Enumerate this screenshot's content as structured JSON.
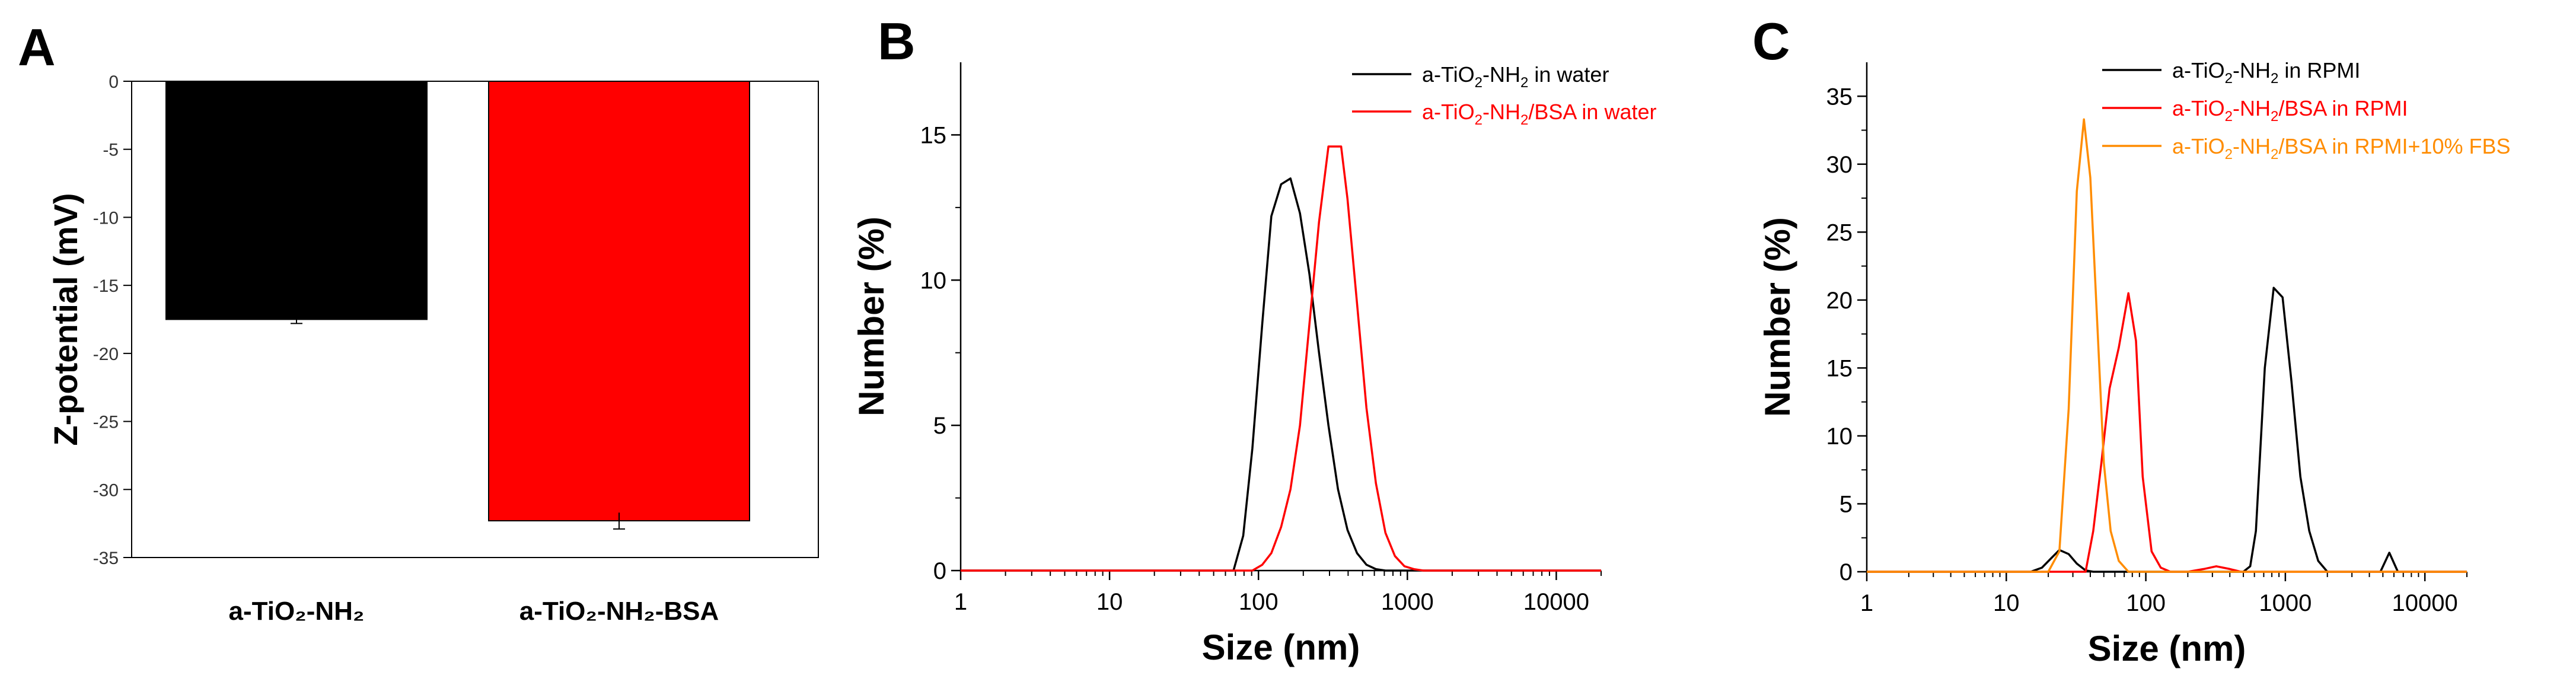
{
  "colors": {
    "black": "#000000",
    "red": "#ff0000",
    "orange": "#ff8c00"
  },
  "chart_data": [
    {
      "panel_letter": "A",
      "type": "bar",
      "title": "",
      "xlabel": "",
      "ylabel": "Z-potential (mV)",
      "ylim": [
        -35,
        0
      ],
      "yticks": [
        0,
        -5,
        -10,
        -15,
        -20,
        -25,
        -30,
        -35
      ],
      "ytick_labels": [
        "0",
        "-5",
        "-10",
        "-15",
        "-20",
        "-25",
        "-30",
        "-35"
      ],
      "categories": [
        "a-TiO₂-NH₂",
        "a-TiO₂-NH₂-BSA"
      ],
      "values": [
        -17.5,
        -32.3
      ],
      "errors": [
        0.3,
        0.6
      ],
      "bar_colors": [
        "#000000",
        "#ff0000"
      ]
    },
    {
      "panel_letter": "B",
      "type": "line",
      "xscale": "log",
      "xlabel": "Size (nm)",
      "ylabel": "Number (%)",
      "xlim": [
        1,
        20000
      ],
      "ylim": [
        0,
        17.5
      ],
      "xticks": [
        1,
        10,
        100,
        1000,
        10000
      ],
      "xtick_labels": [
        "1",
        "10",
        "100",
        "1000",
        "10000"
      ],
      "yticks": [
        0,
        5,
        10,
        15
      ],
      "ytick_labels": [
        "0",
        "5",
        "10",
        "15"
      ],
      "legend_position": "top-right",
      "series": [
        {
          "name_pre": "a-TiO",
          "name_sub1": "2",
          "name_mid": "-NH",
          "name_sub2": "2",
          "name_post": " in water",
          "color": "#000000",
          "x": [
            1,
            68,
            79,
            91,
            106,
            122,
            142,
            164,
            190,
            220,
            255,
            295,
            342,
            396,
            459,
            531,
            615,
            712,
            825,
            955,
            1106,
            20000
          ],
          "y": [
            0,
            0,
            1.2,
            4.2,
            8.5,
            12.2,
            13.3,
            13.5,
            12.3,
            10.2,
            7.5,
            5.0,
            2.8,
            1.4,
            0.6,
            0.2,
            0.05,
            0,
            0,
            0,
            0,
            0
          ]
        },
        {
          "name_pre": "a-TiO",
          "name_sub1": "2",
          "name_mid": "-NH",
          "name_sub2": "2",
          "name_post": "/BSA in water",
          "color": "#ff0000",
          "x": [
            1,
            91,
            106,
            122,
            142,
            164,
            190,
            220,
            255,
            295,
            310,
            342,
            359,
            396,
            459,
            531,
            615,
            712,
            825,
            955,
            1106,
            1281,
            1484,
            20000
          ],
          "y": [
            0,
            0,
            0.2,
            0.6,
            1.5,
            2.8,
            5.0,
            8.5,
            12.0,
            14.6,
            14.6,
            14.6,
            14.6,
            12.8,
            9.2,
            5.6,
            3.0,
            1.3,
            0.5,
            0.15,
            0.05,
            0,
            0,
            0
          ]
        }
      ]
    },
    {
      "panel_letter": "C",
      "type": "line",
      "xscale": "log",
      "xlabel": "Size (nm)",
      "ylabel": "Number (%)",
      "xlim": [
        1,
        20000
      ],
      "ylim": [
        0,
        37.5
      ],
      "xticks": [
        1,
        10,
        100,
        1000,
        10000
      ],
      "xtick_labels": [
        "1",
        "10",
        "100",
        "1000",
        "10000"
      ],
      "yticks": [
        0,
        5,
        10,
        15,
        20,
        25,
        30,
        35
      ],
      "ytick_labels": [
        "0",
        "5",
        "10",
        "15",
        "20",
        "25",
        "30",
        "35"
      ],
      "legend_position": "top-right",
      "series": [
        {
          "name_pre": "a-TiO",
          "name_sub1": "2",
          "name_mid": "-NH",
          "name_sub2": "2",
          "name_post": " in RPMI",
          "color": "#000000",
          "x": [
            1,
            15,
            18,
            21,
            24,
            28,
            32,
            37,
            42,
            500,
            560,
            615,
            712,
            825,
            955,
            1106,
            1281,
            1484,
            1720,
            2000,
            4000,
            4800,
            5560,
            6400,
            7500,
            20000
          ],
          "y": [
            0,
            0,
            0.3,
            1.0,
            1.6,
            1.3,
            0.6,
            0.1,
            0,
            0,
            0.4,
            3.0,
            15.0,
            20.9,
            20.2,
            14.0,
            7.0,
            3.0,
            0.8,
            0,
            0,
            0,
            1.4,
            0,
            0,
            0
          ]
        },
        {
          "name_pre": "a-TiO",
          "name_sub1": "2",
          "name_mid": "-NH",
          "name_sub2": "2",
          "name_post": "/BSA in RPMI",
          "color": "#ff0000",
          "x": [
            1,
            37,
            42,
            48,
            55,
            64,
            75,
            85,
            95,
            110,
            128,
            150,
            200,
            260,
            320,
            400,
            480,
            20000
          ],
          "y": [
            0,
            0,
            3.0,
            8.0,
            13.5,
            16.5,
            20.5,
            17.0,
            7.0,
            1.5,
            0.3,
            0,
            0,
            0.2,
            0.4,
            0.2,
            0,
            0
          ]
        },
        {
          "name_pre": "a-TiO",
          "name_sub1": "2",
          "name_mid": "-NH",
          "name_sub2": "2",
          "name_post": "/BSA in RPMI+10% FBS",
          "color": "#ff8c00",
          "x": [
            1,
            20,
            24,
            28,
            32,
            36,
            40,
            45,
            50,
            56,
            64,
            75,
            20000
          ],
          "y": [
            0,
            0,
            1.5,
            12.0,
            28.0,
            33.3,
            29.0,
            18.0,
            8.0,
            3.0,
            0.8,
            0,
            0
          ]
        }
      ]
    }
  ]
}
